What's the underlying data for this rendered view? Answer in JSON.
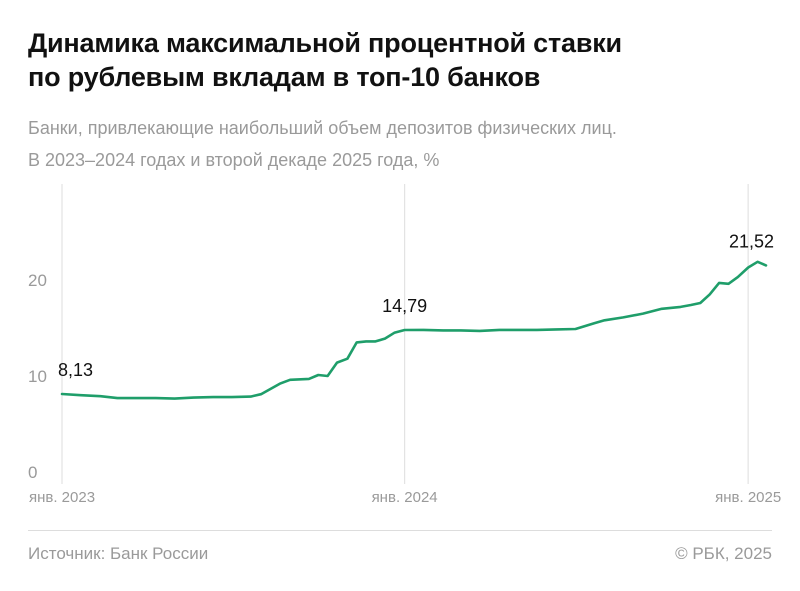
{
  "title": {
    "line1": "Динамика максимальной процентной ставки",
    "line2": "по рублевым вкладам в топ-10 банков"
  },
  "subtitle": {
    "line1": "Банки, привлекающие наибольший объем депозитов физических лиц.",
    "line2": "В 2023–2024 годах и второй декаде 2025 года, %"
  },
  "footer": {
    "source": "Источник: Банк России",
    "copyright": "© РБК, 2025"
  },
  "colors": {
    "line": "#1f9e6a",
    "grid": "#e3e3e3",
    "axis_text": "#9a9a9a",
    "label_text": "#111111"
  },
  "chart_data": {
    "type": "line",
    "title": "",
    "xlabel": "",
    "ylabel": "",
    "grid": "vertical lines at year starts",
    "ylim": [
      0,
      25
    ],
    "yticks": [
      0,
      10,
      20
    ],
    "ytick_labels": [
      "0",
      "10",
      "20"
    ],
    "x_start": "2023-01-01",
    "x_end": "2025-01-20",
    "xticks": [
      "2023-01-01",
      "2024-01-01",
      "2025-01-01"
    ],
    "xtick_labels": [
      "янв. 2023",
      "янв. 2024",
      "янв. 2025"
    ],
    "series": [
      {
        "name": "",
        "x": [
          "2023-01-01",
          "2023-01-21",
          "2023-02-11",
          "2023-03-01",
          "2023-03-21",
          "2023-04-11",
          "2023-05-01",
          "2023-05-21",
          "2023-06-11",
          "2023-07-01",
          "2023-07-21",
          "2023-08-01",
          "2023-08-21",
          "2023-09-01",
          "2023-09-21",
          "2023-10-01",
          "2023-10-11",
          "2023-10-21",
          "2023-11-01",
          "2023-11-11",
          "2023-11-21",
          "2023-12-01",
          "2023-12-11",
          "2023-12-21",
          "2024-01-01",
          "2024-01-21",
          "2024-02-11",
          "2024-03-01",
          "2024-03-21",
          "2024-04-11",
          "2024-05-01",
          "2024-05-21",
          "2024-06-11",
          "2024-07-01",
          "2024-07-21",
          "2024-08-01",
          "2024-08-21",
          "2024-09-11",
          "2024-10-01",
          "2024-10-21",
          "2024-11-01",
          "2024-11-11",
          "2024-11-21",
          "2024-12-01",
          "2024-12-11",
          "2024-12-21",
          "2025-01-01",
          "2025-01-11",
          "2025-01-20"
        ],
        "values": [
          8.13,
          8.0,
          7.9,
          7.7,
          7.7,
          7.7,
          7.65,
          7.75,
          7.8,
          7.8,
          7.85,
          8.1,
          9.2,
          9.6,
          9.7,
          10.1,
          10.0,
          11.4,
          11.8,
          13.5,
          13.6,
          13.6,
          13.9,
          14.5,
          14.79,
          14.8,
          14.75,
          14.75,
          14.7,
          14.8,
          14.8,
          14.8,
          14.85,
          14.9,
          15.5,
          15.8,
          16.1,
          16.5,
          17.0,
          17.2,
          17.4,
          17.6,
          18.5,
          19.7,
          19.6,
          20.3,
          21.3,
          21.9,
          21.52
        ]
      }
    ],
    "annotations": [
      {
        "text": "8,13",
        "x": "2023-01-01",
        "y": 8.13
      },
      {
        "text": "14,79",
        "x": "2024-01-01",
        "y": 14.79
      },
      {
        "text": "21,52",
        "x": "2025-01-20",
        "y": 21.52
      }
    ]
  }
}
